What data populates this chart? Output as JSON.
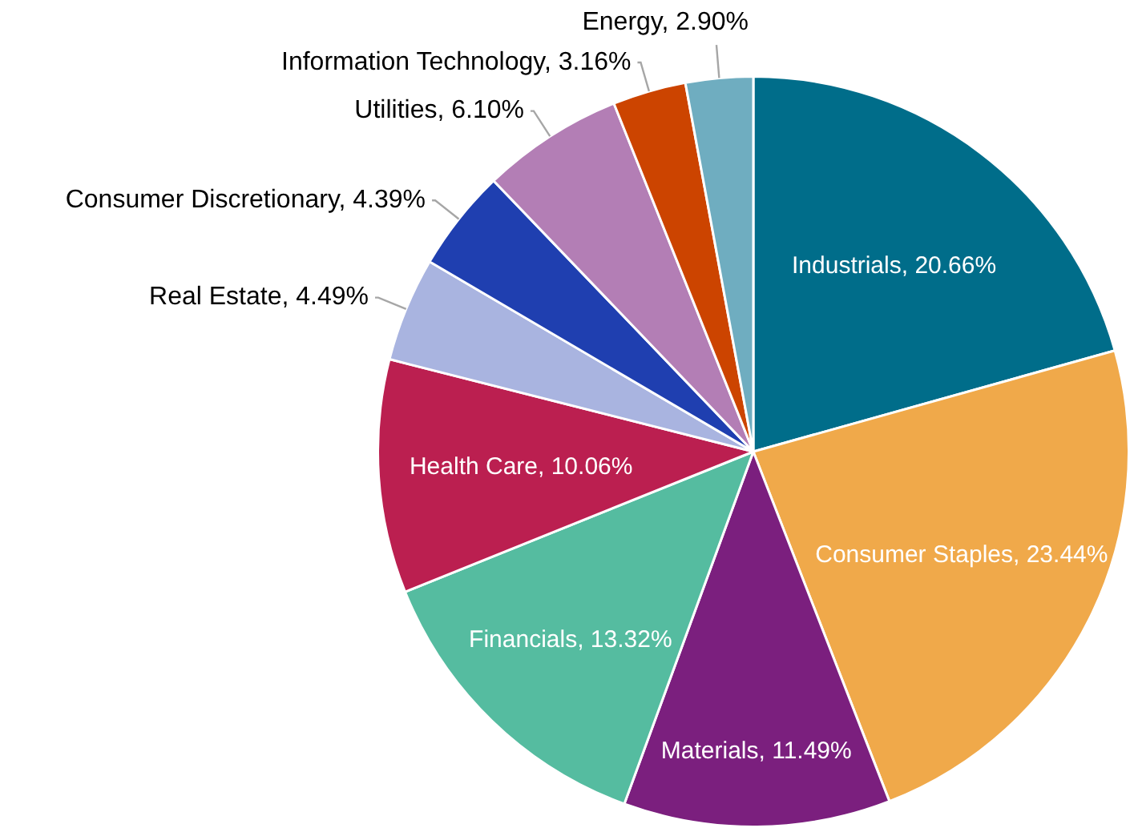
{
  "chart_data": {
    "type": "pie",
    "categories": [
      "Industrials",
      "Consumer Staples",
      "Materials",
      "Financials",
      "Health Care",
      "Real Estate",
      "Consumer Discretionary",
      "Utilities",
      "Information Technology",
      "Energy"
    ],
    "values": [
      20.66,
      23.44,
      11.49,
      13.32,
      10.06,
      4.49,
      4.39,
      6.1,
      3.16,
      2.9
    ],
    "value_labels": [
      "20.66%",
      "23.44%",
      "11.49%",
      "13.32%",
      "10.06%",
      "4.49%",
      "4.39%",
      "6.10%",
      "3.16%",
      "2.90%"
    ],
    "colors": [
      "#006d8a",
      "#f0a94a",
      "#7b1f7e",
      "#55bca0",
      "#bb1f50",
      "#a9b4e0",
      "#1f3fb0",
      "#b37eb5",
      "#cc4400",
      "#6fadc0"
    ],
    "legend": false
  }
}
